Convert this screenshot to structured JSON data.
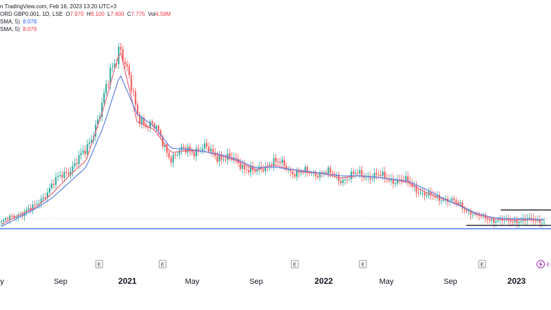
{
  "header": {
    "source_line": {
      "prefix": "n TradingView.com, Feb 16, 2023 13:20 UTC+3",
      "symbol": "ORD GBP0.001, 1D, LSE",
      "open_label": "O",
      "open_value": "7.970",
      "high_label": "H",
      "high_value": "8.100",
      "low_label": "L",
      "low_value": "7.600",
      "close_label": "C",
      "close_value": "7.775",
      "vol_label": "Vol",
      "vol_value": "4.58M"
    },
    "sma_lines": [
      {
        "label": "SMA, 5)",
        "value": "8.078"
      },
      {
        "label": "SMA, 5)",
        "value": "8.079"
      }
    ]
  },
  "colors": {
    "up_candle": "#26a69a",
    "down_candle": "#ef5350",
    "sma_fast": "#f06277",
    "sma_slow": "#5b7fe6",
    "support_line": "#2962ff",
    "box_lines": "#131722",
    "earnings_marker": "#787b86",
    "dividend_marker": "#9c27b0"
  },
  "earnings_markers": [
    "E",
    "E",
    "E",
    "E",
    "E",
    "E"
  ],
  "dividend_marker": "E",
  "chart_data": {
    "type": "line",
    "x": [
      "2020-06",
      "2020-07",
      "2020-08",
      "2020-09",
      "2020-10",
      "2020-11",
      "2020-12",
      "2021-01",
      "2021-02",
      "2021-03",
      "2021-04",
      "2021-05",
      "2021-06",
      "2021-07",
      "2021-08",
      "2021-09",
      "2021-10",
      "2021-11",
      "2021-12",
      "2022-01",
      "2022-02",
      "2022-03",
      "2022-04",
      "2022-05",
      "2022-06",
      "2022-07",
      "2022-08",
      "2022-09",
      "2022-10",
      "2022-11",
      "2022-12",
      "2023-01",
      "2023-02"
    ],
    "series": [
      {
        "values": [
          6,
          13,
          20,
          40,
          54,
          70,
          115,
          170,
          103,
          92,
          65,
          72,
          72,
          65,
          60,
          50,
          62,
          53,
          50,
          52,
          45,
          49,
          48,
          45,
          42,
          30,
          28,
          22,
          12,
          8,
          7,
          8,
          7
        ]
      },
      {
        "values": [
          4,
          12,
          19,
          32,
          48,
          62,
          108,
          162,
          97,
          90,
          69,
          71,
          70,
          66,
          61,
          53,
          58,
          54,
          51,
          50,
          46,
          48,
          47,
          45,
          42,
          33,
          27,
          22,
          13,
          9,
          8,
          8,
          8
        ]
      },
      {
        "values": [
          2,
          10,
          18,
          28,
          42,
          56,
          92,
          140,
          104,
          93,
          73,
          72,
          70,
          67,
          62,
          55,
          56,
          54,
          52,
          50,
          48,
          48,
          47,
          45,
          43,
          36,
          28,
          21,
          14,
          10,
          9,
          9,
          8
        ]
      }
    ],
    "tick_labels": [
      "y",
      "Sep",
      "2021",
      "May",
      "Sep",
      "2022",
      "May",
      "Sep",
      "2023"
    ],
    "tick_bold": [
      false,
      false,
      true,
      false,
      false,
      true,
      false,
      false,
      true
    ],
    "horizontal_levels": [
      {
        "value": 0
      },
      {
        "value": 9
      }
    ],
    "range_box": {
      "top_value": 17,
      "bottom_value": 3
    }
  }
}
